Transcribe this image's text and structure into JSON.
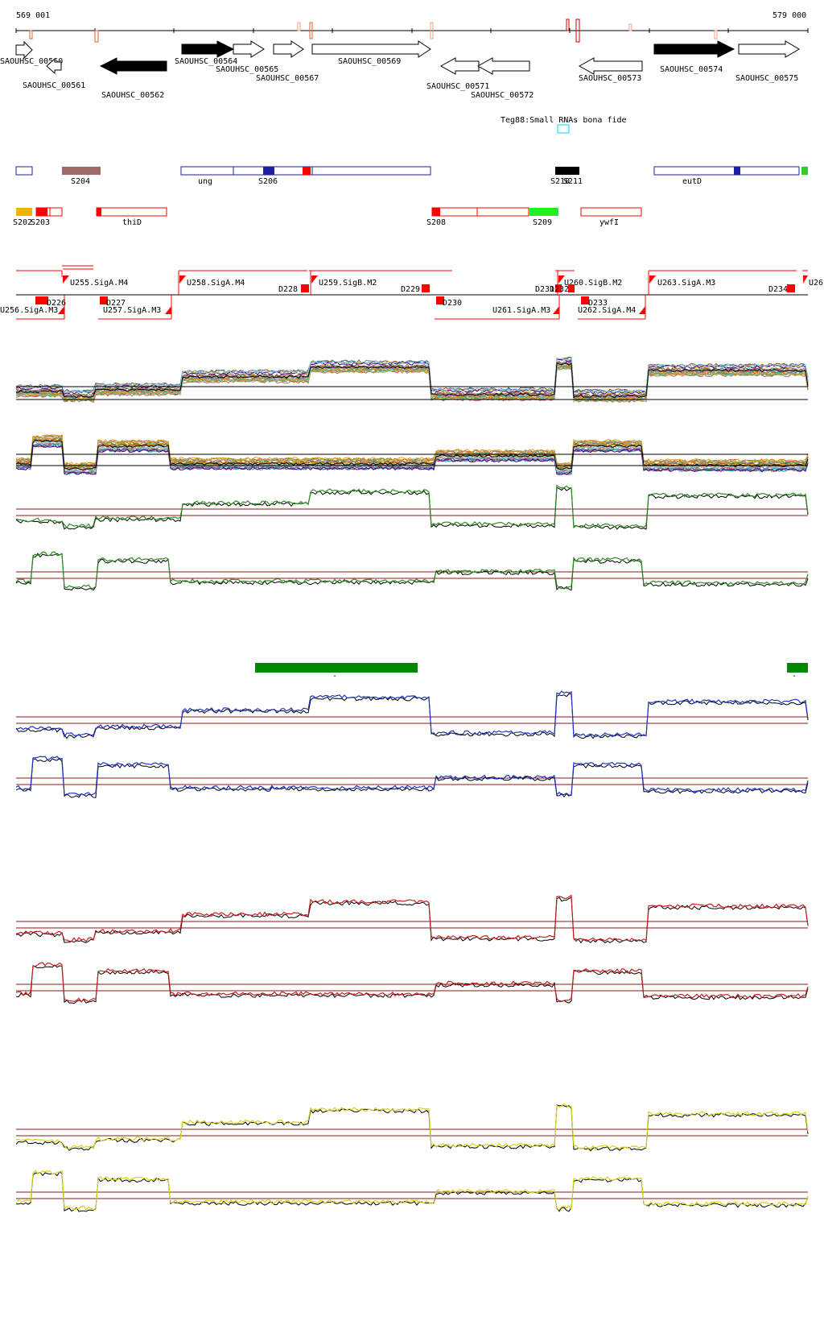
{
  "coordinates": {
    "start_label": "569 001",
    "end_label": "579 000"
  },
  "colors": {
    "gene_fill_strong": "#000000",
    "gene_stroke": "#000000",
    "srna_blue": "#1f1f9f",
    "srna_red": "#ff0000",
    "promoter_red": "#ff0000",
    "green_block": "#008800",
    "blue_track": "#1e34c8",
    "red_track": "#c81e1e",
    "yellow_track": "#d4d41a",
    "green_track": "#2e8b22",
    "baseline_red": "#8b1a1a"
  },
  "genes": [
    {
      "id": "g0560",
      "label": "SAOUHSC_00560",
      "strand": "+",
      "filled": false
    },
    {
      "id": "g0561",
      "label": "SAOUHSC_00561",
      "strand": "-",
      "filled": false
    },
    {
      "id": "g0562",
      "label": "SAOUHSC_00562",
      "strand": "-",
      "filled": true
    },
    {
      "id": "g0564",
      "label": "SAOUHSC_00564",
      "strand": "+",
      "filled": true
    },
    {
      "id": "g0565",
      "label": "SAOUHSC_00565",
      "strand": "+",
      "filled": false
    },
    {
      "id": "g0567",
      "label": "SAOUHSC_00567",
      "strand": "+",
      "filled": false
    },
    {
      "id": "g0569",
      "label": "SAOUHSC_00569",
      "strand": "+",
      "filled": false
    },
    {
      "id": "g0571",
      "label": "SAOUHSC_00571",
      "strand": "-",
      "filled": false
    },
    {
      "id": "g0572",
      "label": "SAOUHSC_00572",
      "strand": "-",
      "filled": false
    },
    {
      "id": "g0573",
      "label": "SAOUHSC_00573",
      "strand": "-",
      "filled": false
    },
    {
      "id": "g0574",
      "label": "SAOUHSC_00574",
      "strand": "+",
      "filled": true
    },
    {
      "id": "g0575",
      "label": "SAOUHSC_00575",
      "strand": "+",
      "filled": false
    }
  ],
  "small_rna_label": "Teg88:Small RNAs bona fide",
  "srna_row1_labels": {
    "s204": "S204",
    "ung": "ung",
    "s206": "S206",
    "s210": "S210",
    "s211": "S211",
    "eutD": "eutD"
  },
  "srna_row2_labels": {
    "s202": "S202",
    "s203": "S203",
    "thiD": "thiD",
    "s208": "S208",
    "s209": "S209",
    "ywfI": "ywfI"
  },
  "promoters_upper": [
    {
      "id": "u255",
      "label": "U255.SigA.M4"
    },
    {
      "id": "u258",
      "label": "U258.SigA.M4"
    },
    {
      "id": "u259",
      "label": "U259.SigB.M2"
    },
    {
      "id": "u260",
      "label": "U260.SigB.M2"
    },
    {
      "id": "u263",
      "label": "U263.SigA.M3"
    },
    {
      "id": "u264",
      "label": "U26"
    }
  ],
  "terminators_upper": [
    {
      "id": "d228",
      "label": "D228"
    },
    {
      "id": "d229",
      "label": "D229"
    },
    {
      "id": "d231",
      "label": "D231"
    },
    {
      "id": "d232",
      "label": "D232"
    },
    {
      "id": "d234",
      "label": "D234"
    }
  ],
  "promoters_lower": [
    {
      "id": "u256",
      "label": "U256.SigA.M3"
    },
    {
      "id": "u257",
      "label": "U257.SigA.M3"
    },
    {
      "id": "u261",
      "label": "U261.SigA.M3"
    },
    {
      "id": "u262",
      "label": "U262.SigA.M4"
    }
  ],
  "terminators_lower": [
    {
      "id": "d226",
      "label": "D226"
    },
    {
      "id": "d227",
      "label": "D227"
    },
    {
      "id": "d230",
      "label": "D230"
    },
    {
      "id": "d233",
      "label": "D233"
    }
  ],
  "dash_labels": {
    "a": "-",
    "b": "-"
  }
}
